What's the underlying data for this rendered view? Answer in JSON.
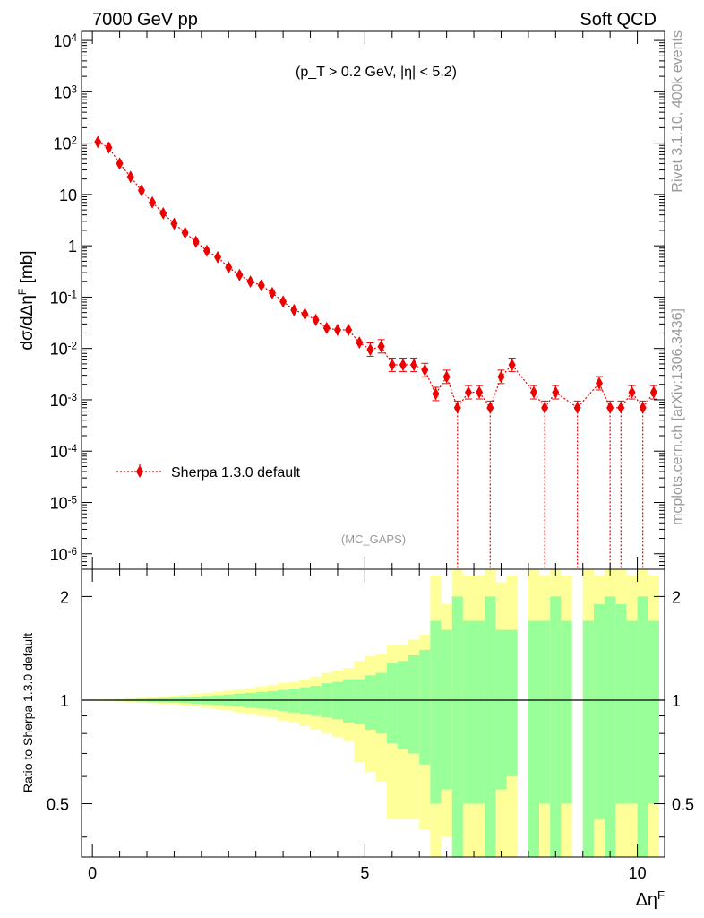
{
  "header": {
    "energy_label": "7000 GeV pp",
    "process_label": "Soft QCD",
    "cuts_label": "(p_T > 0.2 GeV, |η| < 5.2)",
    "analysis_label": "(MC_GAPS)"
  },
  "side_text": {
    "version": "Rivet 3.1.10,  400k events",
    "source": "mcplots.cern.ch [arXiv:1306.3436]"
  },
  "colors": {
    "mc_marker": "#ee0000",
    "band_inner": "#99ff99",
    "band_outer": "#ffff99",
    "ref_line": "#000000"
  },
  "chart_data": [
    {
      "type": "scatter",
      "title": "",
      "xlabel": "Δη^F",
      "ylabel": "dσ/dΔη^F [mb]",
      "yscale": "log",
      "xlim": [
        -0.2,
        10.5
      ],
      "ylim": [
        5e-07,
        15000
      ],
      "y_tick_labels": [
        "10^-6",
        "10^-5",
        "10^-4",
        "10^-3",
        "10^-2",
        "10^-1",
        "1",
        "10",
        "10^2",
        "10^3",
        "10^4"
      ],
      "legend": "lower-left",
      "series": [
        {
          "name": "Sherpa 1.3.0 default",
          "style": "dotted line with diamond markers",
          "x": [
            0.1,
            0.3,
            0.5,
            0.7,
            0.9,
            1.1,
            1.3,
            1.5,
            1.7,
            1.9,
            2.1,
            2.3,
            2.5,
            2.7,
            2.9,
            3.1,
            3.3,
            3.5,
            3.7,
            3.9,
            4.1,
            4.3,
            4.5,
            4.7,
            4.9,
            5.1,
            5.3,
            5.5,
            5.7,
            5.9,
            6.1,
            6.3,
            6.5,
            6.7,
            6.9,
            7.1,
            7.3,
            7.5,
            7.7,
            8.1,
            8.3,
            8.5,
            8.9,
            9.3,
            9.5,
            9.7,
            9.9,
            10.1,
            10.3
          ],
          "y": [
            105,
            82,
            40,
            22,
            12,
            7,
            4.3,
            2.7,
            1.8,
            1.2,
            0.8,
            0.6,
            0.38,
            0.27,
            0.2,
            0.17,
            0.12,
            0.082,
            0.056,
            0.047,
            0.036,
            0.025,
            0.023,
            0.023,
            0.013,
            0.0095,
            0.011,
            0.0048,
            0.0048,
            0.0048,
            0.0038,
            0.0013,
            0.0028,
            0.0007,
            0.0014,
            0.0014,
            0.0007,
            0.0028,
            0.0048,
            0.0014,
            0.0007,
            0.0014,
            0.0007,
            0.0021,
            0.0007,
            0.0007,
            0.0014,
            0.0007,
            0.0014
          ],
          "y_err_down_to_zero_from_x": 6.7
        }
      ]
    },
    {
      "type": "area",
      "title": "",
      "xlabel": "Δη^F",
      "ylabel": "Ratio to Sherpa 1.3.0 default",
      "yscale": "log",
      "xlim": [
        -0.2,
        10.5
      ],
      "ylim": [
        0.35,
        2.4
      ],
      "x_ticks": [
        0,
        5,
        10
      ],
      "y_ticks": [
        0.5,
        1,
        2
      ],
      "reference_line": 1,
      "series": [
        {
          "name": "",
          "bin_edges": [
            0.0,
            0.2,
            0.4,
            0.6,
            0.8,
            1.0,
            1.2,
            1.4,
            1.6,
            1.8,
            2.0,
            2.2,
            2.4,
            2.6,
            2.8,
            3.0,
            3.2,
            3.4,
            3.6,
            3.8,
            4.0,
            4.2,
            4.4,
            4.6,
            4.8,
            5.0,
            5.2,
            5.4,
            5.6,
            5.8,
            6.0,
            6.2,
            6.4,
            6.6,
            6.8,
            7.0,
            7.2,
            7.4,
            7.6,
            7.8,
            8.0,
            8.2,
            8.4,
            8.6,
            8.8,
            9.0,
            9.2,
            9.4,
            9.6,
            9.8,
            10.0,
            10.2,
            10.4
          ],
          "inner_up": [
            1.003,
            1.004,
            1.005,
            1.007,
            1.009,
            1.011,
            1.013,
            1.016,
            1.02,
            1.024,
            1.028,
            1.033,
            1.038,
            1.045,
            1.05,
            1.055,
            1.062,
            1.07,
            1.08,
            1.09,
            1.1,
            1.12,
            1.13,
            1.15,
            1.15,
            1.18,
            1.2,
            1.28,
            1.3,
            1.35,
            1.4,
            1.7,
            1.6,
            2.0,
            1.7,
            1.7,
            2.0,
            1.6,
            1.6,
            null,
            1.7,
            1.7,
            2.0,
            1.7,
            null,
            1.7,
            1.9,
            2.0,
            1.9,
            1.7,
            2.0,
            1.7,
            2.0
          ],
          "inner_down": [
            0.997,
            0.996,
            0.995,
            0.993,
            0.991,
            0.989,
            0.987,
            0.984,
            0.98,
            0.976,
            0.972,
            0.968,
            0.963,
            0.957,
            0.95,
            0.945,
            0.94,
            0.93,
            0.92,
            0.91,
            0.9,
            0.89,
            0.88,
            0.86,
            0.85,
            0.82,
            0.8,
            0.75,
            0.72,
            0.7,
            0.65,
            0.5,
            0.55,
            0.0,
            0.5,
            0.5,
            0.0,
            0.55,
            0.6,
            null,
            0.0,
            0.5,
            0.0,
            0.5,
            null,
            0.0,
            0.45,
            0.0,
            0.5,
            0.5,
            0.0,
            0.5,
            0.0
          ],
          "outer_up": [
            1.005,
            1.007,
            1.009,
            1.012,
            1.016,
            1.02,
            1.025,
            1.03,
            1.036,
            1.043,
            1.05,
            1.058,
            1.066,
            1.075,
            1.085,
            1.095,
            1.105,
            1.12,
            1.13,
            1.15,
            1.17,
            1.2,
            1.22,
            1.24,
            1.3,
            1.34,
            1.36,
            1.45,
            1.45,
            1.5,
            1.55,
            2.3,
            1.9,
            2.4,
            2.3,
            2.3,
            2.4,
            2.2,
            2.3,
            null,
            2.4,
            2.3,
            2.4,
            2.3,
            null,
            2.4,
            2.3,
            2.4,
            2.4,
            2.3,
            2.4,
            2.3,
            2.4
          ],
          "outer_down": [
            0.995,
            0.993,
            0.991,
            0.988,
            0.984,
            0.98,
            0.975,
            0.97,
            0.964,
            0.957,
            0.95,
            0.942,
            0.933,
            0.92,
            0.91,
            0.9,
            0.89,
            0.87,
            0.86,
            0.84,
            0.82,
            0.8,
            0.78,
            0.76,
            0.66,
            0.62,
            0.58,
            0.45,
            0.45,
            0.45,
            0.42,
            0.35,
            0.4,
            0.35,
            0.35,
            0.35,
            0.35,
            0.35,
            0.35,
            null,
            0.35,
            0.35,
            0.35,
            0.35,
            null,
            0.35,
            0.35,
            0.35,
            0.35,
            0.35,
            0.35,
            0.35,
            0.35
          ]
        }
      ]
    }
  ]
}
